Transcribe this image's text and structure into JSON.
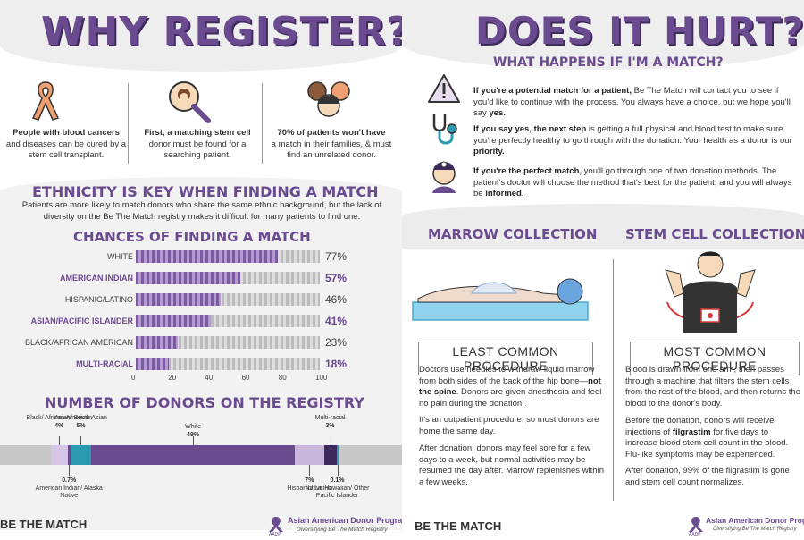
{
  "left": {
    "title": "WHY REGISTER?",
    "reasons": [
      {
        "icon": "ribbon-icon",
        "line1": "People with blood cancers",
        "rest": "and diseases can be cured by a stem cell transplant."
      },
      {
        "icon": "magnifier-icon",
        "line1": "First, a matching stem cell",
        "rest": "donor must be found for a searching patient."
      },
      {
        "icon": "people-icon",
        "line1": "70% of patients won't have",
        "rest": "a match in their families, & must find an unrelated donor."
      }
    ],
    "ethnicity_heading": "ETHNICITY IS KEY WHEN FINDING A MATCH",
    "ethnicity_text": "Patients are more likely to match donors who share the same ethnic background, but the lack of diversity on the Be The Match registry makes it difficult for many patients to find one.",
    "chance_heading": "CHANCES OF FINDING A MATCH",
    "donors_heading": "NUMBER OF DONORS ON THE REGISTRY",
    "footer_logo": "BE THE MATCH",
    "aadp_name": "Asian American Donor Program",
    "aadp_abbr": "AADP",
    "aadp_tag": "Diversifying Be The Match Registry"
  },
  "chart_data": [
    {
      "type": "bar",
      "title": "CHANCES OF FINDING A MATCH",
      "categories": [
        "WHITE",
        "AMERICAN INDIAN",
        "HISPANIC/LATINO",
        "ASIAN/PACIFIC ISLANDER",
        "BLACK/AFRICAN AMERICAN",
        "MULTI-RACIAL"
      ],
      "values": [
        77,
        57,
        46,
        41,
        23,
        18
      ],
      "value_labels": [
        "77%",
        "57%",
        "46%",
        "41%",
        "23%",
        "18%"
      ],
      "highlighted": [
        false,
        true,
        false,
        true,
        false,
        true
      ],
      "xlim": [
        0,
        100
      ],
      "xticks": [
        "0",
        "20",
        "40",
        "60",
        "80",
        "100"
      ],
      "orientation": "horizontal"
    },
    {
      "type": "bar",
      "title": "NUMBER OF DONORS ON THE REGISTRY",
      "orientation": "stacked-horizontal",
      "segments": [
        {
          "label": "Black/ African American",
          "value": 4,
          "value_label": "4%",
          "color": "#d6c6e6",
          "above": true
        },
        {
          "label": "American Indian/ Alaska Native",
          "value": 0.7,
          "value_label": "0.7%",
          "color": "#6b4b8f",
          "above": false
        },
        {
          "label": "Asian/ South Asian",
          "value": 5,
          "value_label": "5%",
          "color": "#2a9bb0",
          "above": true
        },
        {
          "label": "White",
          "value": 49,
          "value_label": "49%",
          "color": "#6b4b8f",
          "above": true
        },
        {
          "label": "Hispanic/ Latino",
          "value": 7,
          "value_label": "7%",
          "color": "#c9b6dd",
          "above": false
        },
        {
          "label": "Multi-racial",
          "value": 3,
          "value_label": "3%",
          "color": "#3d2a5c",
          "above": true
        },
        {
          "label": "Native Hawaiian/ Other Pacific Islander",
          "value": 0.1,
          "value_label": "0.1%",
          "color": "#2a9bb0",
          "above": false
        }
      ]
    }
  ],
  "right": {
    "title": "DOES IT HURT?",
    "subtitle": "WHAT HAPPENS IF I'M A MATCH?",
    "steps": [
      {
        "icon": "warning-icon",
        "bold": "If you're a potential match for a patient,",
        "text": " Be The Match will contact you to see if you'd like to continue with the process. You always have a choice, but we hope you'll say ",
        "end_bold": "yes."
      },
      {
        "icon": "stethoscope-icon",
        "bold": "If you say yes, the next step",
        "text": " is getting a full physical and blood test to make sure you're perfectly healthy to go through with the donation. Your health as a donor is our ",
        "end_bold": "priority."
      },
      {
        "icon": "doctor-icon",
        "bold": "If you're the perfect match,",
        "text": " you'll go through one of two donation methods. The patient's doctor will choose the method that's best for the patient, and you will always be ",
        "end_bold": "informed."
      }
    ],
    "marrow": {
      "heading": "MARROW COLLECTION",
      "box": "LEAST COMMON PROCEDURE",
      "p1_a": "Doctors use needles to withdraw liquid marrow from both sides of the back of the hip bone—",
      "p1_b": "not the spine",
      "p1_c": ". Donors are given anesthesia and feel no pain during the donation.",
      "p2": "It's an outpatient procedure, so most donors are home the same day.",
      "p3": "After donation, donors may feel sore for a few days to a week, but normal activities may be resumed the day after. Marrow replenishes within a few weeks."
    },
    "stem": {
      "heading": "STEM CELL COLLECTION",
      "box": "MOST COMMON PROCEDURE",
      "p1": "Blood is drawn from one arm, then passes through a machine that filters the stem cells from the rest of the blood, and then returns the blood to the donor's body.",
      "p2_a": "Before the donation, donors will receive injections of ",
      "p2_b": "filgrastim",
      "p2_c": " for five days to increase blood stem cell count in the blood. Flu-like symptoms may be experienced.",
      "p3": "After donation, 99% of the filgrastim is gone and stem cell count normalizes."
    },
    "footer_logo": "BE THE MATCH",
    "aadp_name": "Asian American Donor Program",
    "aadp_abbr": "AADP",
    "aadp_tag": "Diversifying Be The Match Registry"
  },
  "colors": {
    "purple": "#6b4b8f",
    "dark_purple": "#3f2a5c",
    "teal": "#2a9bb0",
    "orange": "#f0a070",
    "gray": "#cccccc"
  }
}
